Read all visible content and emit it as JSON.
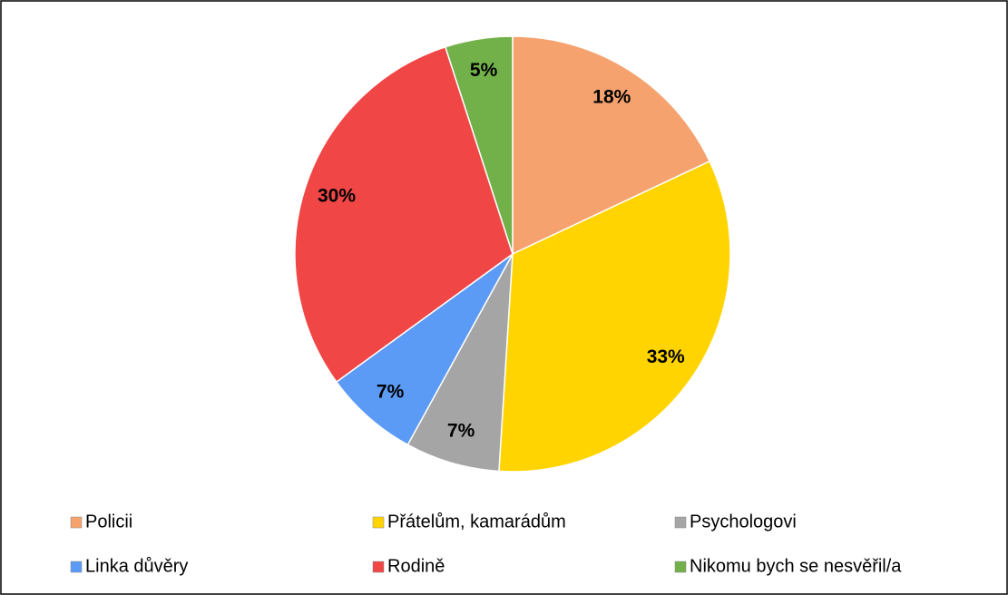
{
  "chart_data": {
    "type": "pie",
    "categories": [
      "Policii",
      "Přátelům, kamarádům",
      "Psychologovi",
      "Linka důvěry",
      "Rodině",
      "Nikomu bych se nesvěřil/a"
    ],
    "values": [
      18,
      33,
      7,
      7,
      30,
      5
    ],
    "value_labels": [
      "18%",
      "33%",
      "7%",
      "7%",
      "30%",
      "5%"
    ],
    "colors": [
      "#f5a26f",
      "#ffd400",
      "#a5a5a5",
      "#5b9bf5",
      "#f04646",
      "#72b04a"
    ],
    "legend": "bottom"
  }
}
